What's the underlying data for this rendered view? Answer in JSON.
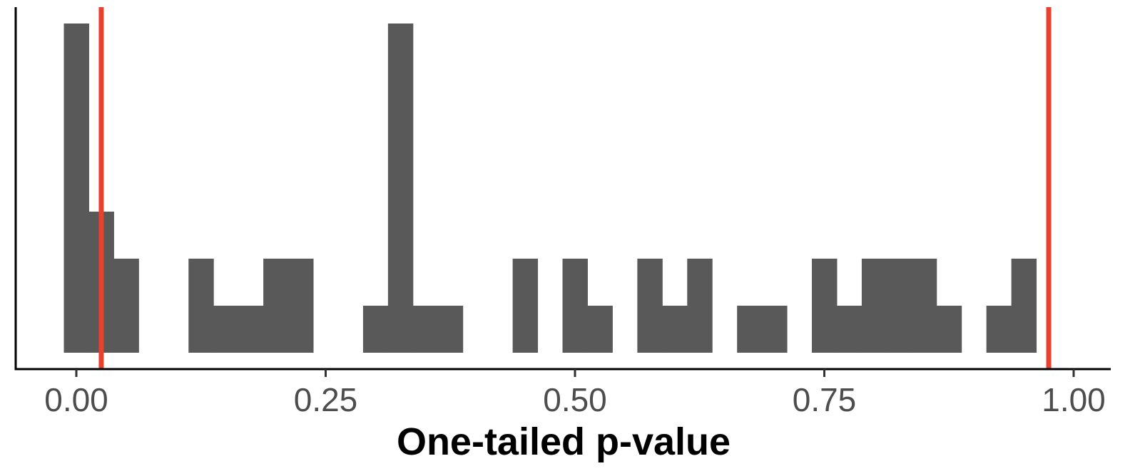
{
  "chart_data": {
    "type": "bar",
    "title": "",
    "xlabel": "One-tailed p-value",
    "ylabel": "",
    "xlim": [
      -0.06,
      1.035
    ],
    "ylim": [
      0,
      7.2
    ],
    "x_ticks": [
      {
        "value": 0.0,
        "label": "0.00"
      },
      {
        "value": 0.25,
        "label": "0.25"
      },
      {
        "value": 0.5,
        "label": "0.50"
      },
      {
        "value": 0.75,
        "label": "0.75"
      },
      {
        "value": 1.0,
        "label": "1.00"
      }
    ],
    "bin_width": 0.025,
    "bins": [
      {
        "start": -0.0125,
        "count": 7
      },
      {
        "start": 0.0125,
        "count": 3
      },
      {
        "start": 0.0375,
        "count": 2
      },
      {
        "start": 0.1125,
        "count": 2
      },
      {
        "start": 0.1375,
        "count": 1
      },
      {
        "start": 0.1625,
        "count": 1
      },
      {
        "start": 0.1875,
        "count": 2
      },
      {
        "start": 0.2125,
        "count": 2
      },
      {
        "start": 0.2875,
        "count": 1
      },
      {
        "start": 0.3125,
        "count": 7
      },
      {
        "start": 0.3375,
        "count": 1
      },
      {
        "start": 0.3625,
        "count": 1
      },
      {
        "start": 0.4375,
        "count": 2
      },
      {
        "start": 0.4875,
        "count": 2
      },
      {
        "start": 0.5125,
        "count": 1
      },
      {
        "start": 0.5625,
        "count": 2
      },
      {
        "start": 0.5875,
        "count": 1
      },
      {
        "start": 0.6125,
        "count": 2
      },
      {
        "start": 0.6625,
        "count": 1
      },
      {
        "start": 0.6875,
        "count": 1
      },
      {
        "start": 0.7375,
        "count": 2
      },
      {
        "start": 0.7625,
        "count": 1
      },
      {
        "start": 0.7875,
        "count": 2
      },
      {
        "start": 0.8125,
        "count": 2
      },
      {
        "start": 0.8375,
        "count": 2
      },
      {
        "start": 0.8625,
        "count": 1
      },
      {
        "start": 0.9125,
        "count": 1
      },
      {
        "start": 0.9375,
        "count": 2
      }
    ],
    "reference_lines": [
      0.025,
      0.975
    ],
    "bar_color": "#595959",
    "reference_line_color": "#e8412d",
    "axis_color": "#000000",
    "tick_label_color": "#4d4d4d",
    "grid": false,
    "legend": "none"
  }
}
